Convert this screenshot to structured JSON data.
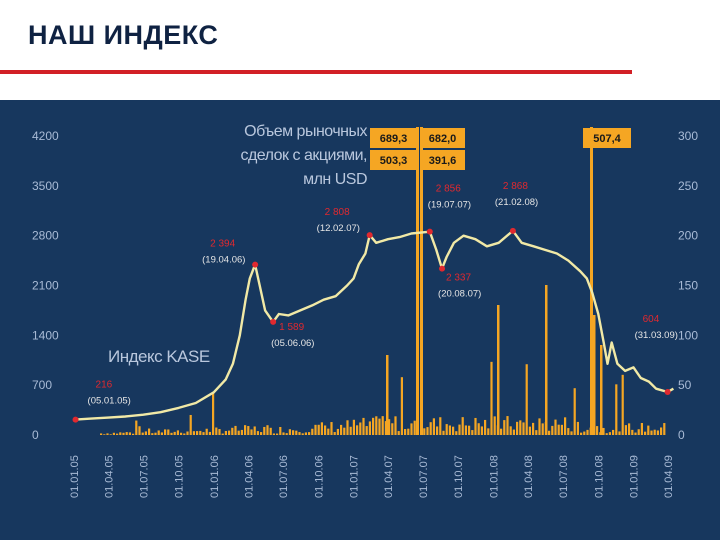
{
  "page": {
    "title": "НАШ ИНДЕКС"
  },
  "chart_data": {
    "type": "line",
    "left_axis": {
      "ticks": [
        "4200",
        "3500",
        "2800",
        "2100",
        "1400",
        "700",
        "0"
      ],
      "range": [
        0,
        4200
      ]
    },
    "right_axis": {
      "ticks": [
        "300",
        "250",
        "200",
        "150",
        "100",
        "50",
        "0"
      ],
      "range": [
        0,
        300
      ]
    },
    "x_ticks": [
      "01.01.05",
      "01.04.05",
      "01.07.05",
      "01.10.05",
      "01.01.06",
      "01.04.06",
      "01.07.06",
      "01.10.06",
      "01.01.07",
      "01.04.07",
      "01.07.07",
      "01.10.07",
      "01.01.08",
      "01.04.08",
      "01.07.08",
      "01.10.08",
      "01.01.09",
      "01.04.09"
    ],
    "bars_title_lines": [
      "Объем рыночных",
      "сделок с акциями,",
      "млн USD"
    ],
    "index_label": "Индекс KASE",
    "series": [
      {
        "name": "Индекс KASE",
        "axis": "left",
        "color": "#f1e9a6",
        "points": [
          [
            "2005-01-05",
            216
          ],
          [
            "2005-02-15",
            230
          ],
          [
            "2005-04-01",
            245
          ],
          [
            "2005-05-15",
            260
          ],
          [
            "2005-07-01",
            285
          ],
          [
            "2005-08-15",
            320
          ],
          [
            "2005-10-01",
            380
          ],
          [
            "2005-11-15",
            450
          ],
          [
            "2006-01-01",
            600
          ],
          [
            "2006-02-01",
            780
          ],
          [
            "2006-02-20",
            1000
          ],
          [
            "2006-03-10",
            1400
          ],
          [
            "2006-03-25",
            1900
          ],
          [
            "2006-04-05",
            2200
          ],
          [
            "2006-04-19",
            2394
          ],
          [
            "2006-05-01",
            2100
          ],
          [
            "2006-05-15",
            1750
          ],
          [
            "2006-06-05",
            1589
          ],
          [
            "2006-06-20",
            1700
          ],
          [
            "2006-07-15",
            1680
          ],
          [
            "2006-08-15",
            1750
          ],
          [
            "2006-09-15",
            1820
          ],
          [
            "2006-10-15",
            1900
          ],
          [
            "2006-11-15",
            1950
          ],
          [
            "2006-12-15",
            2100
          ],
          [
            "2007-01-01",
            2200
          ],
          [
            "2007-01-15",
            2400
          ],
          [
            "2007-02-01",
            2550
          ],
          [
            "2007-02-12",
            2808
          ],
          [
            "2007-03-01",
            2700
          ],
          [
            "2007-04-01",
            2750
          ],
          [
            "2007-05-01",
            2780
          ],
          [
            "2007-06-01",
            2830
          ],
          [
            "2007-07-19",
            2856
          ],
          [
            "2007-08-05",
            2600
          ],
          [
            "2007-08-20",
            2337
          ],
          [
            "2007-09-01",
            2500
          ],
          [
            "2007-09-20",
            2700
          ],
          [
            "2007-10-15",
            2800
          ],
          [
            "2007-11-15",
            2750
          ],
          [
            "2007-12-15",
            2650
          ],
          [
            "2008-01-15",
            2700
          ],
          [
            "2008-02-21",
            2868
          ],
          [
            "2008-03-15",
            2700
          ],
          [
            "2008-04-15",
            2650
          ],
          [
            "2008-05-15",
            2600
          ],
          [
            "2008-06-15",
            2550
          ],
          [
            "2008-07-15",
            2450
          ],
          [
            "2008-08-15",
            2300
          ],
          [
            "2008-09-01",
            2200
          ],
          [
            "2008-09-15",
            2000
          ],
          [
            "2008-10-01",
            1700
          ],
          [
            "2008-10-15",
            1300
          ],
          [
            "2008-10-25",
            1000
          ],
          [
            "2008-11-05",
            1300
          ],
          [
            "2008-11-20",
            1000
          ],
          [
            "2008-12-10",
            900
          ],
          [
            "2009-01-01",
            950
          ],
          [
            "2009-01-20",
            800
          ],
          [
            "2009-02-10",
            750
          ],
          [
            "2009-03-01",
            650
          ],
          [
            "2009-03-31",
            604
          ],
          [
            "2009-04-15",
            650
          ]
        ]
      },
      {
        "name": "Объем рыночных сделок с акциями, млн USD",
        "axis": "right",
        "color": "#f5a623"
      }
    ],
    "annotations": [
      {
        "date": "2005-01-05",
        "value": "216",
        "date_label": "(05.01.05)"
      },
      {
        "date": "2006-04-19",
        "value": "2 394",
        "date_label": "(19.04.06)"
      },
      {
        "date": "2006-06-05",
        "value": "1 589",
        "date_label": "(05.06.06)"
      },
      {
        "date": "2007-02-12",
        "value": "2 808",
        "date_label": "(12.02.07)"
      },
      {
        "date": "2007-07-19",
        "value": "2 856",
        "date_label": "(19.07.07)"
      },
      {
        "date": "2007-08-20",
        "value": "2 337",
        "date_label": "(20.08.07)"
      },
      {
        "date": "2008-02-21",
        "value": "2 868",
        "date_label": "(21.02.08)"
      },
      {
        "date": "2009-03-31",
        "value": "604",
        "date_label": "(31.03.09)"
      }
    ],
    "volume_callouts": [
      {
        "value": "689,3"
      },
      {
        "value": "682,0"
      },
      {
        "value": "503,3"
      },
      {
        "value": "391,6"
      },
      {
        "value": "507,4"
      }
    ],
    "colors": {
      "background": "#17375e",
      "axis_text": "#a9bbd6",
      "bars": "#f5a623",
      "index_line": "#f1e9a6",
      "markers": "#e0292f",
      "accent_red": "#d21f26"
    }
  }
}
